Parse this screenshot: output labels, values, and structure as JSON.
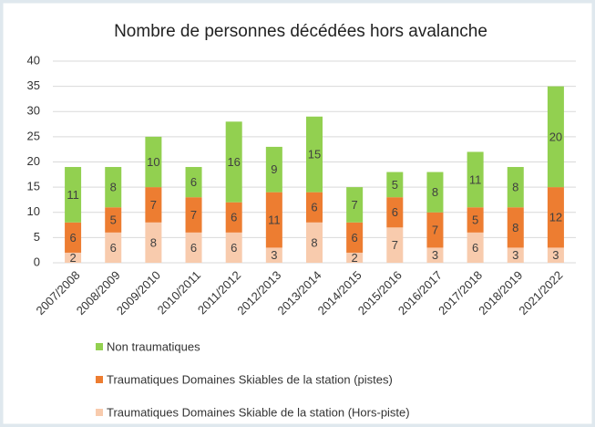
{
  "chart_data": {
    "type": "stacked_bar",
    "title": "Nombre de personnes décédées hors avalanche",
    "categories": [
      "2007/2008",
      "2008/2009",
      "2009/2010",
      "2010/2011",
      "2011/2012",
      "2012/2013",
      "2013/2014",
      "2014/2015",
      "2015/2016",
      "2016/2017",
      "2017/2018",
      "2018/2019",
      "2021/2022"
    ],
    "series": [
      {
        "name": "Traumatiques Domaines Skiable de la station (Hors-piste)",
        "color": "#f8cbad",
        "values": [
          2,
          6,
          8,
          6,
          6,
          3,
          8,
          2,
          7,
          3,
          6,
          3,
          3
        ]
      },
      {
        "name": "Traumatiques Domaines Skiables de la station (pistes)",
        "color": "#ed7d31",
        "values": [
          6,
          5,
          7,
          7,
          6,
          11,
          6,
          6,
          6,
          7,
          5,
          8,
          12
        ]
      },
      {
        "name": "Non traumatiques",
        "color": "#92d050",
        "values": [
          11,
          8,
          10,
          6,
          16,
          9,
          15,
          7,
          5,
          8,
          11,
          8,
          20
        ]
      }
    ],
    "ylim": [
      0,
      40
    ],
    "yticks": [
      0,
      5,
      10,
      15,
      20,
      25,
      30,
      35,
      40
    ],
    "grid": true
  }
}
